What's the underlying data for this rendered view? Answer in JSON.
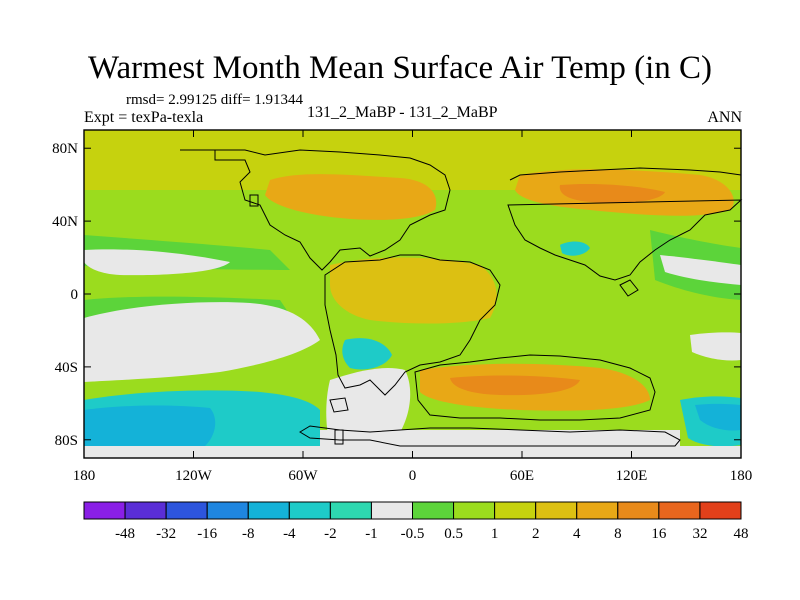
{
  "map": {
    "title": "Warmest Month Mean Surface Air Temp (in C)",
    "stats_line": "rmsd= 2.99125 diff= 1.91344",
    "expt_line": "Expt = texPa-texla",
    "case_line": "131_2_MaBP - 131_2_MaBP",
    "season": "ANN",
    "lat_ticks": [
      {
        "value": 80,
        "label": "80N"
      },
      {
        "value": 40,
        "label": "40N"
      },
      {
        "value": 0,
        "label": "0"
      },
      {
        "value": -40,
        "label": "40S"
      },
      {
        "value": -80,
        "label": "80S"
      }
    ],
    "lon_ticks": [
      {
        "value": -180,
        "label": "180"
      },
      {
        "value": -120,
        "label": "120W"
      },
      {
        "value": -60,
        "label": "60W"
      },
      {
        "value": 0,
        "label": "0"
      },
      {
        "value": 60,
        "label": "60E"
      },
      {
        "value": 120,
        "label": "120E"
      },
      {
        "value": 180,
        "label": "180"
      }
    ],
    "lon_range": [
      -180,
      180
    ],
    "lat_range": [
      -90,
      90
    ]
  },
  "colorbar": {
    "colors": [
      "#8a1fe6",
      "#5a2ed6",
      "#2d55dd",
      "#1f86e0",
      "#14b2d8",
      "#1ecbc8",
      "#2ed8b0",
      "#e8e8e8",
      "#5cd43a",
      "#9bdc1e",
      "#c6d20e",
      "#dcc012",
      "#e8a816",
      "#e88a1a",
      "#e8661e",
      "#e2401a"
    ],
    "labels": [
      "-48",
      "-32",
      "-16",
      "-8",
      "-4",
      "-2",
      "-1",
      "-0.5",
      "0.5",
      "1",
      "2",
      "4",
      "8",
      "16",
      "32",
      "48"
    ]
  },
  "fill_colors": {
    "frame": "#000000",
    "white": "#e8e8e8",
    "green_light": "#9bdc1e",
    "green": "#5cd43a",
    "yellow": "#c6d20e",
    "orange_light": "#dcc012",
    "orange": "#e8a816",
    "cyan": "#1ecbc8",
    "cyan_dark": "#14b2d8"
  }
}
